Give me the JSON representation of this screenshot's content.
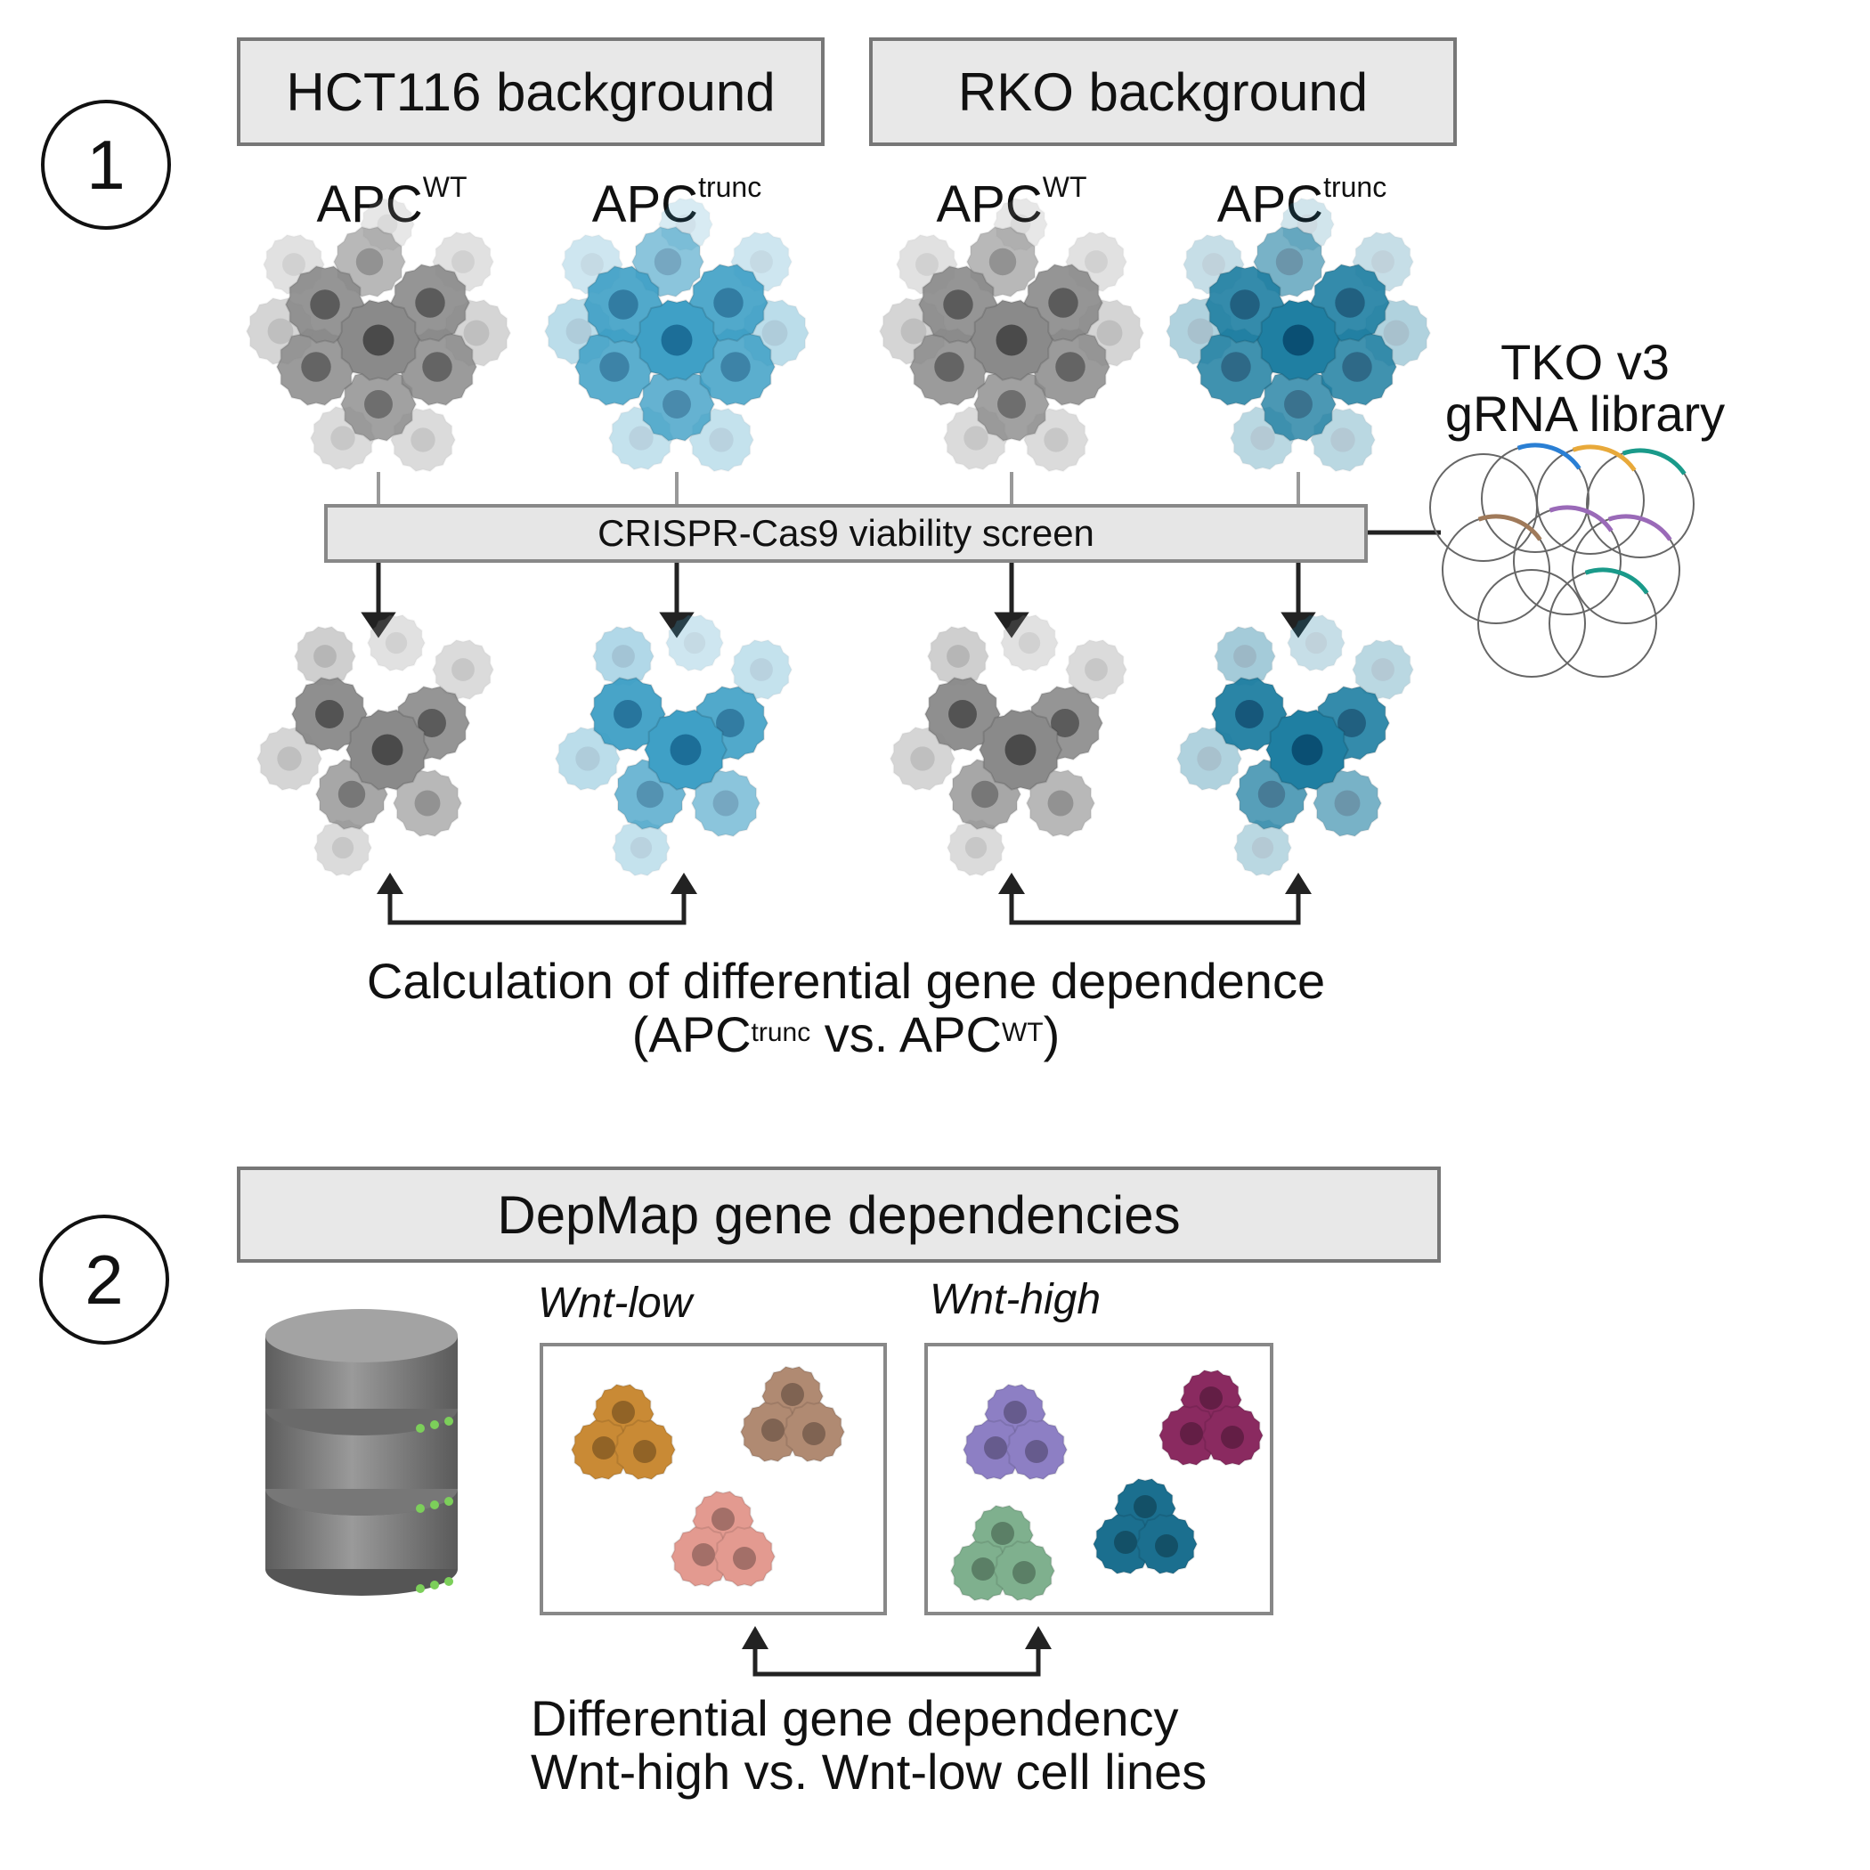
{
  "section1": {
    "step": "1",
    "headers": [
      "HCT116 background",
      "RKO background"
    ],
    "groups": [
      {
        "label": "APC",
        "sup": "WT",
        "style": "gray"
      },
      {
        "label": "APC",
        "sup": "trunc",
        "style": "blue"
      },
      {
        "label": "APC",
        "sup": "WT",
        "style": "gray"
      },
      {
        "label": "APC",
        "sup": "trunc",
        "style": "darkblue"
      }
    ],
    "screen_label": "CRISPR-Cas9 viability screen",
    "library": {
      "line1": "TKO v3",
      "line2": "gRNA library"
    },
    "caption": {
      "line1": "Calculation of differential gene dependence",
      "open": "(APC",
      "sup1": "trunc",
      "mid": " vs. APC",
      "sup2": "WT",
      "close": ")"
    }
  },
  "section2": {
    "step": "2",
    "header": "DepMap gene dependencies",
    "panels": [
      {
        "label": "Wnt-low",
        "clusters": [
          "#c98a35",
          "#b08a72",
          "#e39a90"
        ]
      },
      {
        "label": "Wnt-high",
        "clusters": [
          "#8d7fc4",
          "#8a2a60",
          "#7fb08e",
          "#1b6f8f"
        ]
      }
    ],
    "caption": {
      "line1": "Differential gene dependency",
      "line2": "Wnt-high vs. Wnt-low cell lines"
    }
  },
  "colors": {
    "gray_cell": "#8a8a8a",
    "gray_nucleus": "#4a4a4a",
    "blue_cell": "#3fa0c6",
    "blue_nucleus": "#1c6e98",
    "darkblue_cell": "#1f7fa2",
    "darkblue_nucleus": "#0a4f73",
    "plasmid_arrows": [
      "#2a7fd4",
      "#e8a93a",
      "#1a9a8a",
      "#9a6ab8",
      "#a07a5a"
    ]
  }
}
